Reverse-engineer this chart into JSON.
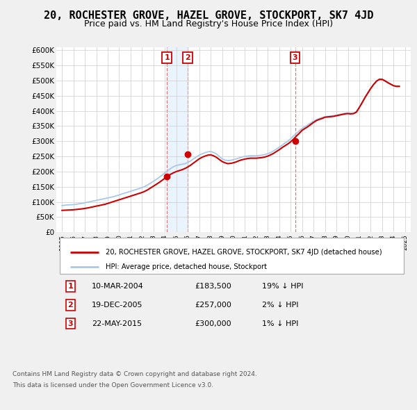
{
  "title": "20, ROCHESTER GROVE, HAZEL GROVE, STOCKPORT, SK7 4JD",
  "subtitle": "Price paid vs. HM Land Registry's House Price Index (HPI)",
  "title_fontsize": 11,
  "subtitle_fontsize": 9,
  "ylim": [
    0,
    610000
  ],
  "yticks": [
    0,
    50000,
    100000,
    150000,
    200000,
    250000,
    300000,
    350000,
    400000,
    450000,
    500000,
    550000,
    600000
  ],
  "ytick_labels": [
    "£0",
    "£50K",
    "£100K",
    "£150K",
    "£200K",
    "£250K",
    "£300K",
    "£350K",
    "£400K",
    "£450K",
    "£500K",
    "£550K",
    "£600K"
  ],
  "xlim_start": 1994.5,
  "xlim_end": 2025.5,
  "bg_color": "#f0f0f0",
  "plot_bg_color": "#ffffff",
  "grid_color": "#cccccc",
  "hpi_color": "#a8c8e8",
  "price_color": "#cc0000",
  "marker_color": "#cc0000",
  "vline_color": "#cc6666",
  "shade_color": "#ddeeff",
  "sales": [
    {
      "year": 2004.19,
      "price": 183500,
      "label": "1"
    },
    {
      "year": 2005.96,
      "price": 257000,
      "label": "2"
    },
    {
      "year": 2015.38,
      "price": 300000,
      "label": "3"
    }
  ],
  "hpi_years": [
    1995,
    1995.25,
    1995.5,
    1995.75,
    1996,
    1996.25,
    1996.5,
    1996.75,
    1997,
    1997.25,
    1997.5,
    1997.75,
    1998,
    1998.25,
    1998.5,
    1998.75,
    1999,
    1999.25,
    1999.5,
    1999.75,
    2000,
    2000.25,
    2000.5,
    2000.75,
    2001,
    2001.25,
    2001.5,
    2001.75,
    2002,
    2002.25,
    2002.5,
    2002.75,
    2003,
    2003.25,
    2003.5,
    2003.75,
    2004,
    2004.25,
    2004.5,
    2004.75,
    2005,
    2005.25,
    2005.5,
    2005.75,
    2006,
    2006.25,
    2006.5,
    2006.75,
    2007,
    2007.25,
    2007.5,
    2007.75,
    2008,
    2008.25,
    2008.5,
    2008.75,
    2009,
    2009.25,
    2009.5,
    2009.75,
    2010,
    2010.25,
    2010.5,
    2010.75,
    2011,
    2011.25,
    2011.5,
    2011.75,
    2012,
    2012.25,
    2012.5,
    2012.75,
    2013,
    2013.25,
    2013.5,
    2013.75,
    2014,
    2014.25,
    2014.5,
    2014.75,
    2015,
    2015.25,
    2015.5,
    2015.75,
    2016,
    2016.25,
    2016.5,
    2016.75,
    2017,
    2017.25,
    2017.5,
    2017.75,
    2018,
    2018.25,
    2018.5,
    2018.75,
    2019,
    2019.25,
    2019.5,
    2019.75,
    2020,
    2020.25,
    2020.5,
    2020.75,
    2021,
    2021.25,
    2021.5,
    2021.75,
    2022,
    2022.25,
    2022.5,
    2022.75,
    2023,
    2023.25,
    2023.5,
    2023.75,
    2024,
    2024.25,
    2024.5
  ],
  "hpi_values": [
    88000,
    89000,
    90000,
    90500,
    91000,
    92000,
    94000,
    95000,
    97000,
    99000,
    101000,
    103000,
    105000,
    107000,
    109000,
    111000,
    113000,
    115000,
    117000,
    120000,
    123000,
    126000,
    129000,
    132000,
    135000,
    138000,
    141000,
    144000,
    147000,
    151000,
    156000,
    162000,
    168000,
    174000,
    181000,
    188000,
    196000,
    203000,
    210000,
    216000,
    220000,
    222000,
    224000,
    226000,
    230000,
    235000,
    242000,
    248000,
    254000,
    258000,
    262000,
    265000,
    266000,
    263000,
    258000,
    250000,
    242000,
    238000,
    236000,
    237000,
    239000,
    242000,
    245000,
    248000,
    250000,
    251000,
    252000,
    252000,
    252000,
    253000,
    254000,
    256000,
    259000,
    263000,
    268000,
    274000,
    280000,
    287000,
    294000,
    300000,
    308000,
    317000,
    326000,
    334000,
    342000,
    348000,
    354000,
    360000,
    366000,
    371000,
    375000,
    378000,
    381000,
    382000,
    383000,
    384000,
    386000,
    388000,
    390000,
    392000,
    393000,
    392000,
    392000,
    398000,
    412000,
    428000,
    445000,
    460000,
    474000,
    486000,
    496000,
    502000,
    502000,
    498000,
    492000,
    487000,
    482000,
    480000,
    480000
  ],
  "price_years": [
    1995,
    1995.25,
    1995.5,
    1995.75,
    1996,
    1996.25,
    1996.5,
    1996.75,
    1997,
    1997.25,
    1997.5,
    1997.75,
    1998,
    1998.25,
    1998.5,
    1998.75,
    1999,
    1999.25,
    1999.5,
    1999.75,
    2000,
    2000.25,
    2000.5,
    2000.75,
    2001,
    2001.25,
    2001.5,
    2001.75,
    2002,
    2002.25,
    2002.5,
    2002.75,
    2003,
    2003.25,
    2003.5,
    2003.75,
    2004,
    2004.25,
    2004.5,
    2004.75,
    2005,
    2005.25,
    2005.5,
    2005.75,
    2006,
    2006.25,
    2006.5,
    2006.75,
    2007,
    2007.25,
    2007.5,
    2007.75,
    2008,
    2008.25,
    2008.5,
    2008.75,
    2009,
    2009.25,
    2009.5,
    2009.75,
    2010,
    2010.25,
    2010.5,
    2010.75,
    2011,
    2011.25,
    2011.5,
    2011.75,
    2012,
    2012.25,
    2012.5,
    2012.75,
    2013,
    2013.25,
    2013.5,
    2013.75,
    2014,
    2014.25,
    2014.5,
    2014.75,
    2015,
    2015.25,
    2015.5,
    2015.75,
    2016,
    2016.25,
    2016.5,
    2016.75,
    2017,
    2017.25,
    2017.5,
    2017.75,
    2018,
    2018.25,
    2018.5,
    2018.75,
    2019,
    2019.25,
    2019.5,
    2019.75,
    2020,
    2020.25,
    2020.5,
    2020.75,
    2021,
    2021.25,
    2021.5,
    2021.75,
    2022,
    2022.25,
    2022.5,
    2022.75,
    2023,
    2023.25,
    2023.5,
    2023.75,
    2024,
    2024.25,
    2024.5
  ],
  "price_values": [
    72000,
    72500,
    73000,
    73500,
    74000,
    75000,
    76000,
    77000,
    78500,
    80000,
    82000,
    84000,
    86000,
    88000,
    90000,
    92000,
    95000,
    98000,
    101000,
    104000,
    107000,
    110000,
    113000,
    116000,
    119000,
    122000,
    125000,
    128000,
    131000,
    135000,
    140000,
    146000,
    152000,
    158000,
    164000,
    171000,
    178000,
    185000,
    191000,
    196000,
    200000,
    203000,
    206000,
    210000,
    215000,
    221000,
    228000,
    235000,
    242000,
    247000,
    251000,
    254000,
    255000,
    252000,
    247000,
    240000,
    233000,
    229000,
    226000,
    227000,
    229000,
    232000,
    236000,
    239000,
    241000,
    243000,
    244000,
    244000,
    244000,
    245000,
    246000,
    248000,
    251000,
    255000,
    260000,
    266000,
    272000,
    279000,
    285000,
    291000,
    298000,
    307000,
    317000,
    326000,
    336000,
    342000,
    348000,
    355000,
    362000,
    368000,
    372000,
    375000,
    379000,
    380000,
    381000,
    382000,
    384000,
    386000,
    388000,
    390000,
    391000,
    390000,
    391000,
    396000,
    411000,
    427000,
    444000,
    459000,
    474000,
    487000,
    498000,
    504000,
    504000,
    499000,
    493000,
    488000,
    483000,
    481000,
    481000
  ],
  "legend_red_label": "20, ROCHESTER GROVE, HAZEL GROVE, STOCKPORT, SK7 4JD (detached house)",
  "legend_blue_label": "HPI: Average price, detached house, Stockport",
  "table_rows": [
    {
      "num": "1",
      "date": "10-MAR-2004",
      "price": "£183,500",
      "pct": "19% ↓ HPI"
    },
    {
      "num": "2",
      "date": "19-DEC-2005",
      "price": "£257,000",
      "pct": "2% ↓ HPI"
    },
    {
      "num": "3",
      "date": "22-MAY-2015",
      "price": "£300,000",
      "pct": "1% ↓ HPI"
    }
  ],
  "footer_line1": "Contains HM Land Registry data © Crown copyright and database right 2024.",
  "footer_line2": "This data is licensed under the Open Government Licence v3.0.",
  "xticks": [
    1995,
    1996,
    1997,
    1998,
    1999,
    2000,
    2001,
    2002,
    2003,
    2004,
    2005,
    2006,
    2007,
    2008,
    2009,
    2010,
    2011,
    2012,
    2013,
    2014,
    2015,
    2016,
    2017,
    2018,
    2019,
    2020,
    2021,
    2022,
    2023,
    2024,
    2025
  ]
}
